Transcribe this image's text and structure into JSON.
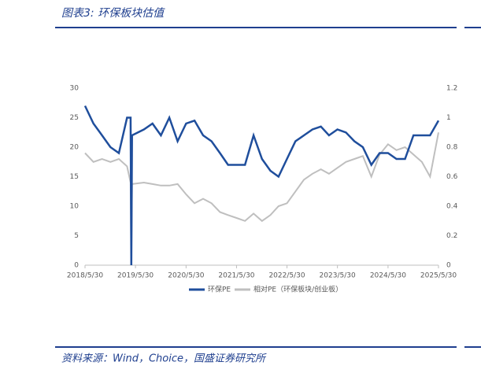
{
  "chart_data": {
    "type": "line",
    "title": "图表3: 环保板块估值",
    "source": "资料来源：Wind，Choice，国盛证券研究所",
    "x": [
      "2018/5/30",
      "2018/7/30",
      "2018/9/30",
      "2018/11/30",
      "2019/1/30",
      "2019/3/30",
      "2019/4/25",
      "2019/4/30",
      "2019/5/5",
      "2019/7/30",
      "2019/9/30",
      "2019/11/30",
      "2020/1/30",
      "2020/3/30",
      "2020/5/30",
      "2020/7/30",
      "2020/9/30",
      "2020/11/30",
      "2021/1/30",
      "2021/3/30",
      "2021/5/30",
      "2021/7/30",
      "2021/9/30",
      "2021/11/30",
      "2022/1/30",
      "2022/3/30",
      "2022/5/30",
      "2022/7/30",
      "2022/9/30",
      "2022/11/30",
      "2023/1/30",
      "2023/3/30",
      "2023/5/30",
      "2023/7/30",
      "2023/9/30",
      "2023/11/30",
      "2024/1/30",
      "2024/3/30",
      "2024/5/30",
      "2024/7/30",
      "2024/9/30",
      "2024/11/30",
      "2025/1/30",
      "2025/3/30",
      "2025/5/30"
    ],
    "xlim": [
      "2018/5/30",
      "2025/5/30"
    ],
    "xticks": [
      "2018/5/30",
      "2019/5/30",
      "2020/5/30",
      "2021/5/30",
      "2022/5/30",
      "2023/5/30",
      "2024/5/30",
      "2025/5/30"
    ],
    "ylim": [
      0,
      30
    ],
    "yticks": [
      0,
      5,
      10,
      15,
      20,
      25,
      30
    ],
    "y2lim": [
      0,
      1.2
    ],
    "y2ticks": [
      0,
      0.2,
      0.4,
      0.6,
      0.8,
      1,
      1.2
    ],
    "series": [
      {
        "name": "环保PE",
        "color": "#1f4e9c",
        "values": [
          27,
          24,
          22,
          20,
          19,
          25,
          25,
          0,
          22,
          23,
          24,
          22,
          25,
          21,
          24,
          24.5,
          22,
          21,
          19,
          17,
          17,
          17,
          22,
          18,
          16,
          15,
          18,
          21,
          22,
          23,
          23.5,
          22,
          23,
          22.5,
          21,
          20,
          17,
          19,
          19,
          18,
          18,
          22,
          22,
          22,
          24.5
        ]
      },
      {
        "name": "相对PE（环保板块/创业板）",
        "color": "#bfbfbf",
        "axis": "y2",
        "values": [
          0.76,
          0.7,
          0.72,
          0.7,
          0.72,
          0.67,
          0.56,
          0,
          0.55,
          0.56,
          0.55,
          0.54,
          0.54,
          0.55,
          0.48,
          0.42,
          0.45,
          0.42,
          0.36,
          0.34,
          0.32,
          0.3,
          0.35,
          0.3,
          0.34,
          0.4,
          0.42,
          0.5,
          0.58,
          0.62,
          0.65,
          0.62,
          0.66,
          0.7,
          0.72,
          0.74,
          0.6,
          0.75,
          0.82,
          0.78,
          0.8,
          0.75,
          0.7,
          0.6,
          0.9
        ]
      }
    ]
  }
}
